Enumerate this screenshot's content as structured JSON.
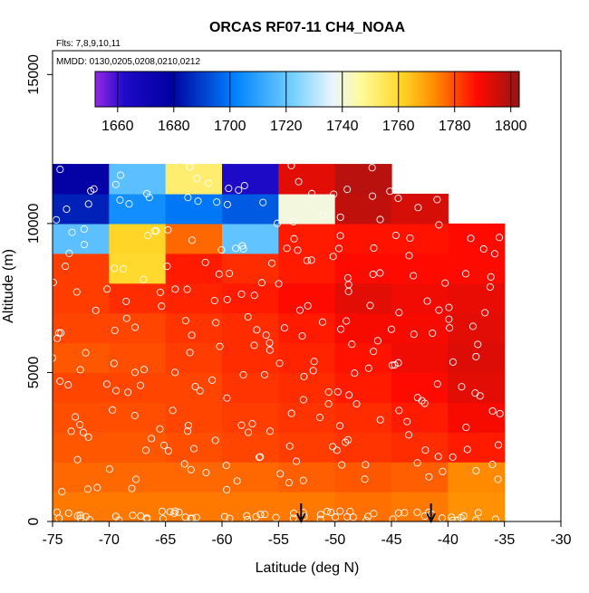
{
  "chart_data": {
    "type": "heatmap",
    "title": "ORCAS RF07-11 CH4_NOAA",
    "flights_note": "Flts: 7,8,9,10,11",
    "dates_note": "MMDD: 0130,0205,0208,0210,0212",
    "xlabel": "Latitude (deg N)",
    "ylabel": "Altitude (m)",
    "xlim": [
      -75,
      -30
    ],
    "ylim": [
      0,
      15800
    ],
    "x_ticks": [
      -75,
      -70,
      -65,
      -60,
      -55,
      -50,
      -45,
      -40,
      -35,
      -30
    ],
    "x_tick_labels": [
      "-75",
      "-70",
      "-65",
      "-60",
      "-55",
      "-50",
      "-45",
      "-40",
      "-35",
      "-30"
    ],
    "y_ticks": [
      0,
      5000,
      10000,
      15000
    ],
    "y_tick_labels": [
      "0",
      "5000",
      "10000",
      "15000"
    ],
    "colorbar": {
      "range": [
        1652,
        1803
      ],
      "ticks": [
        1660,
        1680,
        1700,
        1720,
        1740,
        1760,
        1780,
        1800
      ],
      "tick_labels": [
        "1660",
        "1680",
        "1700",
        "1720",
        "1740",
        "1760",
        "1780",
        "1800"
      ]
    },
    "lat_bin_edges": [
      -75,
      -70,
      -65,
      -60,
      -55,
      -50,
      -45,
      -40,
      -35
    ],
    "alt_bin_edges": [
      0,
      1000,
      2000,
      3000,
      4000,
      5000,
      6000,
      7000,
      8000,
      9000,
      10000,
      11000,
      12000
    ],
    "grid_values": [
      [
        1775,
        1775,
        1775,
        1775,
        1775,
        1776,
        1775,
        1772
      ],
      [
        1777,
        1777,
        1777,
        1777,
        1778,
        1779,
        1778,
        1773
      ],
      [
        1779,
        1779,
        1780,
        1781,
        1782,
        1783,
        1784,
        1786
      ],
      [
        1780,
        1780,
        1781,
        1782,
        1783,
        1784,
        1786,
        1789
      ],
      [
        1781,
        1781,
        1781,
        1783,
        1784,
        1786,
        1788,
        1792
      ],
      [
        1779,
        1780,
        1782,
        1784,
        1785,
        1787,
        1790,
        1793
      ],
      [
        1781,
        1781,
        1783,
        1784,
        1786,
        1789,
        1789,
        1792
      ],
      [
        1782,
        1784,
        1785,
        1786,
        1788,
        1792,
        1790,
        1791
      ],
      [
        1782,
        1760,
        1786,
        1784,
        1786,
        1788,
        1788,
        1788
      ],
      [
        1718,
        1761,
        1777,
        1719,
        1786,
        1787,
        1787,
        1788
      ],
      [
        1685,
        1705,
        1700,
        1695,
        1740,
        1797,
        1794,
        null
      ],
      [
        1677,
        1718,
        1752,
        1663,
        1792,
        1798,
        null,
        null
      ]
    ],
    "arrows_at_lat": [
      -53,
      -41.5
    ]
  }
}
